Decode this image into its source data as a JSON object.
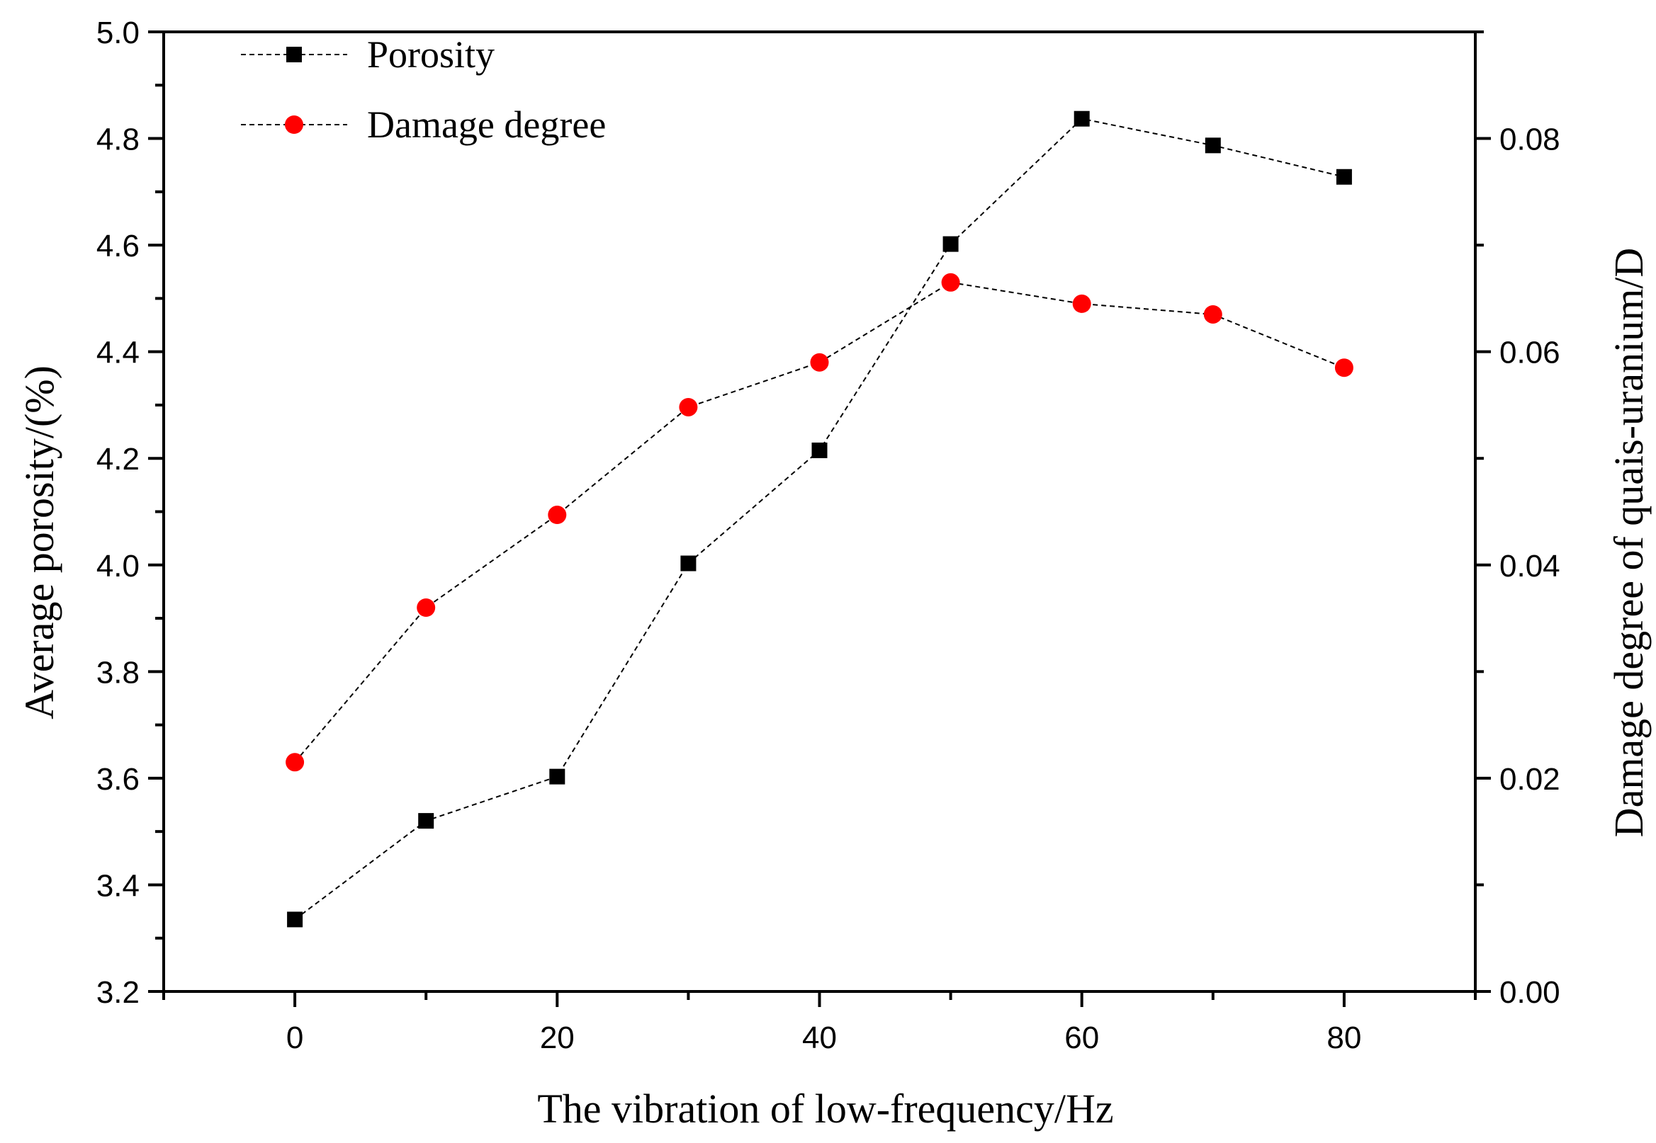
{
  "chart_data": {
    "type": "line",
    "title": "",
    "xlabel": "The vibration of low-frequency/Hz",
    "ylabel_left": "Average porosity/(%)",
    "ylabel_right": "Damage degree of quais-uranium/D",
    "x": [
      0,
      10,
      20,
      30,
      40,
      50,
      60,
      70,
      80
    ],
    "xlim": [
      -10,
      90
    ],
    "xticks": [
      0,
      20,
      40,
      60,
      80
    ],
    "xtick_labels": [
      "0",
      "20",
      "40",
      "60",
      "80"
    ],
    "ylim_left": [
      3.2,
      5.0
    ],
    "yticks_left": [
      3.2,
      3.4,
      3.6,
      3.8,
      4.0,
      4.2,
      4.4,
      4.6,
      4.8,
      5.0
    ],
    "ytick_labels_left": [
      "3.2",
      "3.4",
      "3.6",
      "3.8",
      "4.0",
      "4.2",
      "4.4",
      "4.6",
      "4.8",
      "5.0"
    ],
    "ylim_right": [
      0.0,
      0.09
    ],
    "yticks_right": [
      0.0,
      0.02,
      0.04,
      0.06,
      0.08
    ],
    "ytick_labels_right": [
      "0.00",
      "0.02",
      "0.04",
      "0.06",
      "0.08"
    ],
    "grid": false,
    "legend_position": "top-left",
    "series": [
      {
        "name": "Porosity",
        "axis": "left",
        "marker": "square",
        "color": "#000000",
        "values": [
          3.335,
          3.52,
          3.603,
          4.003,
          4.215,
          4.602,
          4.837,
          4.787,
          4.728
        ]
      },
      {
        "name": "Damage degree",
        "axis": "right",
        "marker": "circle",
        "color": "#ff0000",
        "values": [
          0.0215,
          0.036,
          0.0447,
          0.0548,
          0.059,
          0.0665,
          0.0645,
          0.0635,
          0.0585
        ]
      }
    ]
  }
}
